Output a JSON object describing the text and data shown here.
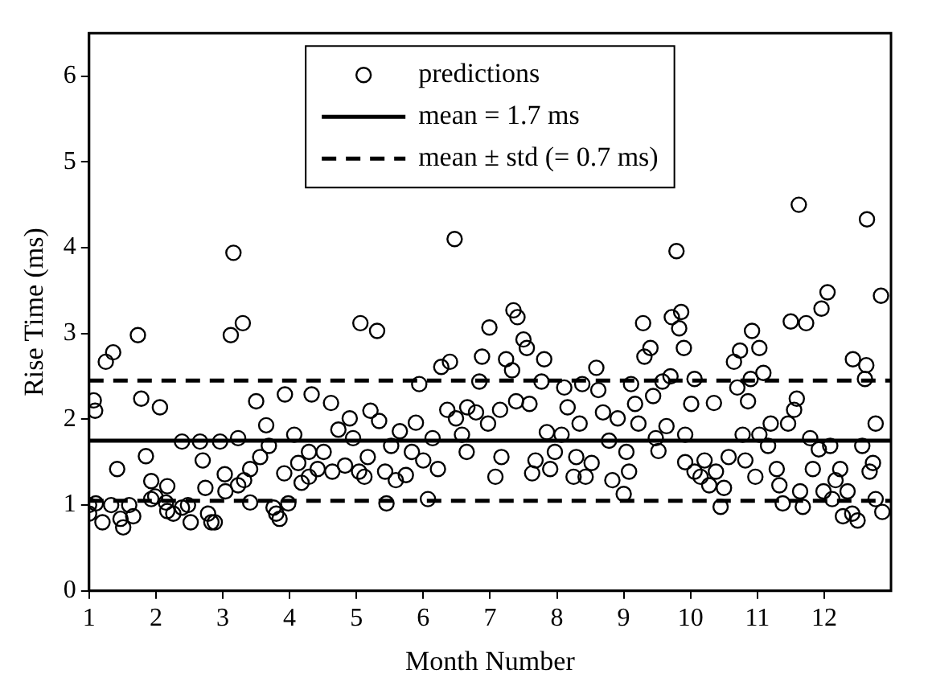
{
  "chart_data": {
    "type": "scatter",
    "xlabel": "Month Number",
    "ylabel": "Rise Time (ms)",
    "xlim": [
      1,
      13
    ],
    "xticks": [
      1,
      2,
      3,
      4,
      5,
      6,
      7,
      8,
      9,
      10,
      11,
      12
    ],
    "ylim": [
      0,
      6.5
    ],
    "yticks": [
      0,
      1,
      2,
      3,
      4,
      5,
      6
    ],
    "grid": false,
    "legend": "top",
    "series": [
      {
        "name": "predictions",
        "color": "#000000",
        "marker": "circle",
        "x": [
          1.0,
          1.0,
          1.07,
          1.09,
          1.1,
          1.2,
          1.33,
          1.25,
          1.36,
          1.42,
          1.47,
          1.51,
          1.6,
          1.66,
          1.73,
          1.78,
          1.85,
          1.93,
          1.93,
          2.06,
          1.99,
          2.17,
          2.15,
          2.26,
          2.17,
          2.39,
          2.39,
          2.48,
          2.52,
          2.66,
          2.7,
          2.74,
          2.78,
          2.83,
          2.88,
          2.96,
          3.03,
          3.04,
          3.12,
          3.16,
          3.3,
          3.23,
          3.23,
          3.32,
          3.41,
          3.41,
          3.5,
          3.56,
          3.65,
          3.69,
          3.76,
          3.8,
          3.85,
          3.93,
          3.92,
          3.98,
          4.07,
          4.13,
          4.18,
          4.29,
          4.29,
          4.33,
          4.42,
          4.51,
          4.62,
          4.64,
          4.73,
          4.83,
          4.9,
          4.95,
          5.04,
          5.06,
          5.12,
          5.21,
          5.17,
          5.31,
          5.34,
          5.43,
          5.45,
          5.52,
          5.59,
          5.65,
          5.74,
          5.83,
          5.89,
          5.94,
          6.0,
          6.07,
          6.14,
          6.22,
          6.27,
          6.36,
          6.4,
          6.47,
          6.49,
          6.58,
          6.65,
          6.66,
          6.79,
          6.88,
          6.84,
          6.97,
          6.99,
          7.08,
          7.15,
          7.17,
          7.24,
          7.33,
          7.35,
          7.41,
          7.39,
          7.5,
          7.55,
          7.59,
          7.63,
          7.68,
          7.77,
          7.81,
          7.85,
          7.9,
          7.97,
          8.07,
          8.11,
          8.16,
          8.25,
          8.29,
          8.34,
          8.38,
          8.43,
          8.52,
          8.59,
          8.62,
          8.69,
          8.78,
          8.83,
          8.91,
          9.0,
          9.04,
          9.08,
          9.11,
          9.17,
          9.22,
          9.29,
          9.31,
          9.4,
          9.44,
          9.48,
          9.52,
          9.58,
          9.64,
          9.7,
          9.72,
          9.79,
          9.83,
          9.86,
          9.9,
          9.92,
          10.01,
          10.06,
          9.92,
          10.06,
          10.15,
          10.21,
          10.28,
          10.35,
          10.38,
          10.45,
          10.5,
          10.57,
          10.65,
          10.7,
          10.74,
          10.78,
          10.82,
          10.86,
          10.9,
          10.92,
          10.97,
          11.03,
          11.03,
          11.09,
          11.16,
          11.2,
          11.29,
          11.33,
          11.38,
          11.46,
          11.5,
          11.55,
          11.59,
          11.62,
          11.64,
          11.68,
          11.73,
          11.79,
          11.83,
          11.92,
          11.99,
          11.96,
          12.05,
          12.09,
          12.12,
          12.17,
          12.24,
          12.28,
          12.35,
          12.43,
          12.42,
          12.5,
          12.57,
          12.63,
          12.61,
          12.64,
          12.68,
          12.73,
          12.77,
          12.77,
          12.85,
          12.87
        ],
        "values": [
          1.0,
          0.9,
          2.22,
          2.1,
          1.02,
          0.8,
          1.0,
          2.67,
          2.78,
          1.42,
          0.84,
          0.74,
          1.0,
          0.87,
          2.98,
          2.24,
          1.57,
          1.28,
          1.07,
          2.14,
          1.1,
          1.22,
          1.03,
          0.9,
          0.93,
          1.74,
          0.97,
          1.0,
          0.8,
          1.74,
          1.52,
          1.2,
          0.9,
          0.8,
          0.8,
          1.74,
          1.36,
          1.16,
          2.98,
          3.94,
          3.12,
          1.78,
          1.23,
          1.29,
          1.03,
          1.42,
          2.21,
          1.56,
          1.93,
          1.69,
          0.97,
          0.9,
          0.84,
          2.29,
          1.37,
          1.02,
          1.82,
          1.49,
          1.26,
          1.33,
          1.62,
          2.29,
          1.42,
          1.62,
          2.19,
          1.39,
          1.88,
          1.46,
          2.01,
          1.78,
          1.39,
          3.12,
          1.33,
          2.1,
          1.56,
          3.03,
          1.98,
          1.39,
          1.02,
          1.69,
          1.29,
          1.86,
          1.35,
          1.62,
          1.96,
          2.41,
          1.52,
          1.07,
          1.78,
          1.42,
          2.61,
          2.11,
          2.67,
          4.1,
          2.01,
          1.82,
          1.62,
          2.14,
          2.08,
          2.73,
          2.44,
          1.95,
          3.07,
          1.33,
          2.11,
          1.56,
          2.7,
          2.57,
          3.27,
          3.19,
          2.21,
          2.93,
          2.83,
          2.18,
          1.37,
          1.52,
          2.44,
          2.7,
          1.85,
          1.42,
          1.62,
          1.82,
          2.37,
          2.14,
          1.33,
          1.56,
          1.95,
          2.41,
          1.33,
          1.49,
          2.6,
          2.34,
          2.08,
          1.75,
          1.29,
          2.01,
          1.13,
          1.62,
          1.39,
          2.41,
          2.18,
          1.95,
          3.12,
          2.73,
          2.83,
          2.27,
          1.78,
          1.63,
          2.44,
          1.92,
          2.5,
          3.19,
          3.96,
          3.06,
          3.25,
          2.83,
          1.82,
          2.18,
          2.47,
          1.5,
          1.39,
          1.33,
          1.52,
          1.23,
          2.19,
          1.39,
          0.98,
          1.2,
          1.56,
          2.67,
          2.37,
          2.8,
          1.82,
          1.52,
          2.21,
          2.47,
          3.03,
          1.33,
          1.82,
          2.83,
          2.54,
          1.69,
          1.95,
          1.42,
          1.23,
          1.02,
          1.95,
          3.14,
          2.11,
          2.24,
          4.5,
          1.16,
          0.98,
          3.12,
          1.78,
          1.42,
          1.65,
          1.16,
          3.29,
          3.48,
          1.69,
          1.07,
          1.29,
          1.42,
          0.87,
          1.16,
          2.7,
          0.9,
          0.82,
          1.69,
          2.63,
          2.47,
          4.33,
          1.39,
          1.49,
          1.95,
          1.07,
          3.44,
          0.92
        ]
      },
      {
        "name": "mean = 1.7 ms",
        "type": "line",
        "color": "#000000",
        "line_style": "solid",
        "marker": "none",
        "x": [
          1,
          13
        ],
        "values": [
          1.75,
          1.75
        ]
      },
      {
        "name": "mean ± std (= 0.7 ms)",
        "type": "line",
        "color": "#000000",
        "line_style": "dashed",
        "marker": "none",
        "x": [
          1,
          13
        ],
        "values": [
          2.45,
          2.45
        ]
      },
      {
        "type": "line",
        "color": "#000000",
        "line_style": "dashed",
        "marker": "none",
        "x": [
          1,
          13
        ],
        "values": [
          1.05,
          1.05
        ]
      }
    ]
  }
}
